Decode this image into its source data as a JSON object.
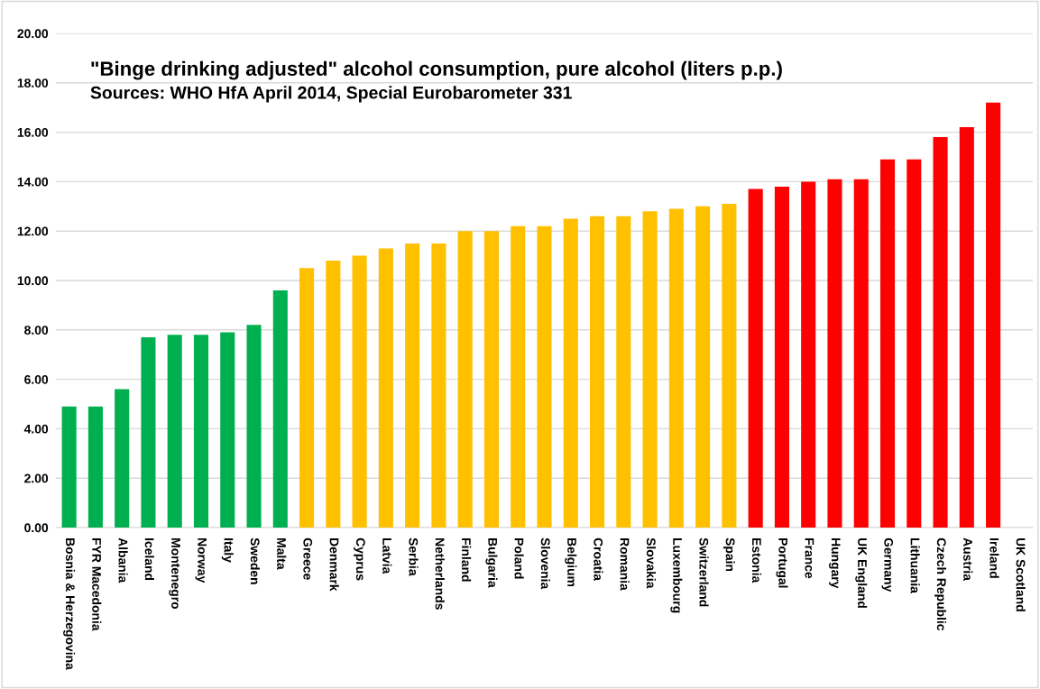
{
  "chart_data": {
    "type": "bar",
    "title": "\"Binge drinking adjusted\" alcohol consumption, pure alcohol (liters p.p.)",
    "subtitle": "Sources: WHO HfA April 2014, Special Eurobarometer 331",
    "categories": [
      "Bosnia & Herzegovina",
      "FYR Macedonia",
      "Albania",
      "Iceland",
      "Montenegro",
      "Norway",
      "Italy",
      "Sweden",
      "Malta",
      "Greece",
      "Denmark",
      "Cyprus",
      "Latvia",
      "Serbia",
      "Netherlands",
      "Finland",
      "Bulgaria",
      "Poland",
      "Slovenia",
      "Belgium",
      "Croatia",
      "Romania",
      "Slovakia",
      "Luxembourg",
      "Switzerland",
      "Spain",
      "Estonia",
      "Portugal",
      "France",
      "Hungary",
      "UK England",
      "Germany",
      "Lithuania",
      "Czech Republic",
      "Austria",
      "Ireland",
      "UK Scotland"
    ],
    "values": [
      4.9,
      4.9,
      5.6,
      7.7,
      7.8,
      7.8,
      7.9,
      8.2,
      9.6,
      10.5,
      10.8,
      11.0,
      11.3,
      11.5,
      11.5,
      12.0,
      12.0,
      12.2,
      12.2,
      12.5,
      12.6,
      12.6,
      12.8,
      12.9,
      13.0,
      13.1,
      13.7,
      13.8,
      14.0,
      14.1,
      14.1,
      14.9,
      14.9,
      15.8,
      16.2,
      17.2,
      null
    ],
    "colors": [
      "#00b050",
      "#00b050",
      "#00b050",
      "#00b050",
      "#00b050",
      "#00b050",
      "#00b050",
      "#00b050",
      "#00b050",
      "#ffc000",
      "#ffc000",
      "#ffc000",
      "#ffc000",
      "#ffc000",
      "#ffc000",
      "#ffc000",
      "#ffc000",
      "#ffc000",
      "#ffc000",
      "#ffc000",
      "#ffc000",
      "#ffc000",
      "#ffc000",
      "#ffc000",
      "#ffc000",
      "#ffc000",
      "#ff0000",
      "#ff0000",
      "#ff0000",
      "#ff0000",
      "#ff0000",
      "#ff0000",
      "#ff0000",
      "#ff0000",
      "#ff0000",
      "#ff0000",
      "#ff0000"
    ],
    "ylim": [
      0,
      20
    ],
    "yticks": [
      {
        "value": 0,
        "label": "0.00"
      },
      {
        "value": 2,
        "label": "2.00"
      },
      {
        "value": 4,
        "label": "4.00"
      },
      {
        "value": 6,
        "label": "6.00"
      },
      {
        "value": 8,
        "label": "8.00"
      },
      {
        "value": 10,
        "label": "10.00"
      },
      {
        "value": 12,
        "label": "12.00"
      },
      {
        "value": 14,
        "label": "14.00"
      },
      {
        "value": 16,
        "label": "16.00"
      },
      {
        "value": 18,
        "label": "18.00"
      },
      {
        "value": 20,
        "label": "20.00"
      }
    ],
    "grid": "y"
  }
}
